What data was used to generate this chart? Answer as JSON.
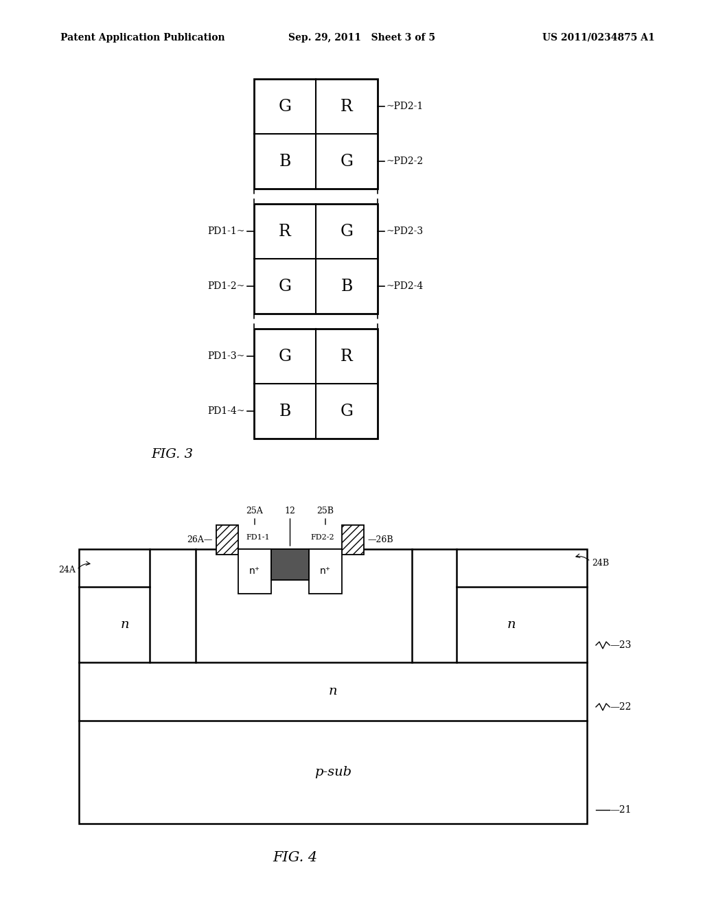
{
  "header_left": "Patent Application Publication",
  "header_mid": "Sep. 29, 2011   Sheet 3 of 5",
  "header_right": "US 2011/0234875 A1",
  "fig3_label": "FIG. 3",
  "fig4_label": "FIG. 4",
  "fig3_groups": [
    {
      "rows": [
        [
          "G",
          "R"
        ],
        [
          "B",
          "G"
        ]
      ],
      "right_labels": [
        "PD2-1",
        "PD2-2"
      ],
      "left_labels": [
        null,
        null
      ]
    },
    {
      "rows": [
        [
          "R",
          "G"
        ],
        [
          "G",
          "B"
        ]
      ],
      "right_labels": [
        "PD2-3",
        "PD2-4"
      ],
      "left_labels": [
        "PD1-1",
        "PD1-2"
      ]
    },
    {
      "rows": [
        [
          "G",
          "R"
        ],
        [
          "B",
          "G"
        ]
      ],
      "right_labels": [
        null,
        null
      ],
      "left_labels": [
        "PD1-3",
        "PD1-4"
      ]
    }
  ],
  "background": "#ffffff",
  "line_color": "#000000",
  "text_color": "#000000"
}
